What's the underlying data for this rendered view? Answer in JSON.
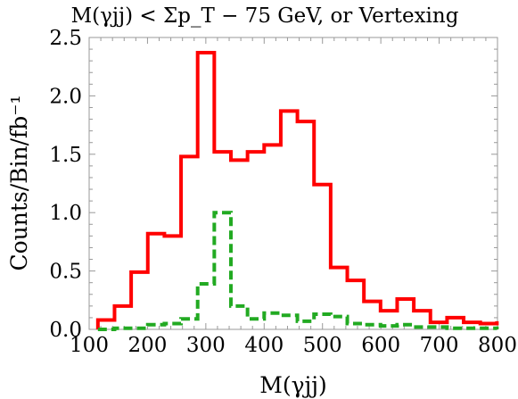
{
  "chart_data": {
    "type": "line",
    "title": "M(γjj) < Σp_T − 75 GeV, or Vertexing",
    "xlabel": "M(γjj)",
    "ylabel": "Counts/Bin/fb⁻¹",
    "xlim": [
      100,
      800
    ],
    "ylim": [
      0,
      2.5
    ],
    "x_ticks": [
      "100",
      "200",
      "300",
      "400",
      "500",
      "600",
      "700",
      "800"
    ],
    "y_ticks": [
      "0.0",
      "0.5",
      "1.0",
      "1.5",
      "2.0",
      "2.5"
    ],
    "grid": false,
    "bin_edges": [
      115,
      143.5,
      172,
      200.5,
      229,
      257.5,
      286,
      314.5,
      343,
      371.5,
      400,
      428.5,
      457,
      485.5,
      514,
      542.5,
      571,
      599.5,
      628,
      656.5,
      685,
      713.5,
      742,
      770.5,
      799
    ],
    "series": [
      {
        "style": "solid",
        "color": "#ff0000",
        "values": [
          0.08,
          0.2,
          0.49,
          0.82,
          0.8,
          1.48,
          2.37,
          1.52,
          1.45,
          1.52,
          1.58,
          1.87,
          1.78,
          1.24,
          0.53,
          0.42,
          0.24,
          0.16,
          0.26,
          0.16,
          0.06,
          0.1,
          0.06,
          0.05,
          0.07
        ]
      },
      {
        "style": "dashed",
        "color": "#22aa22",
        "values": [
          0.0,
          0.01,
          0.01,
          0.04,
          0.05,
          0.09,
          0.39,
          1.0,
          0.2,
          0.09,
          0.14,
          0.12,
          0.07,
          0.13,
          0.11,
          0.05,
          0.04,
          0.03,
          0.04,
          0.02,
          0.02,
          0.01,
          0.01,
          0.01,
          0.0
        ]
      }
    ]
  }
}
